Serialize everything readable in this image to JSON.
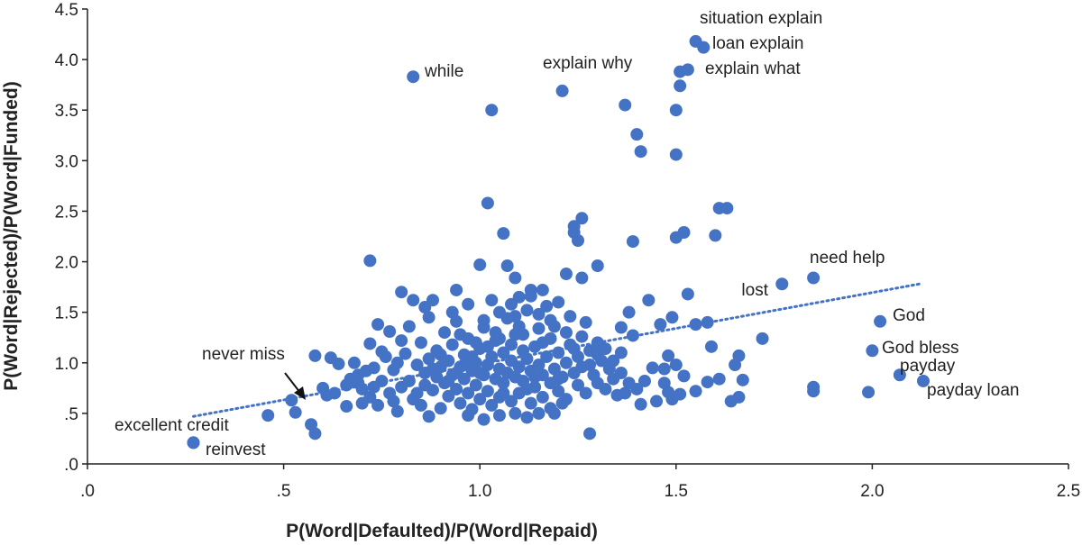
{
  "chart_data": {
    "type": "scatter",
    "title": "",
    "xlabel": "P(Word|Defaulted)/P(Word|Repaid)",
    "ylabel": "P(Word|Rejected)/P(Word|Funded)",
    "xlim": [
      0,
      2.5
    ],
    "ylim": [
      0,
      4.5
    ],
    "x_ticks": [
      0,
      0.5,
      1.0,
      1.5,
      2.0,
      2.5
    ],
    "x_tick_labels": [
      ".0",
      ".5",
      "1.0",
      "1.5",
      "2.0",
      "2.5"
    ],
    "y_ticks": [
      0,
      0.5,
      1.0,
      1.5,
      2.0,
      2.5,
      3.0,
      3.5,
      4.0,
      4.5
    ],
    "y_tick_labels": [
      ".0",
      ".5",
      "1.0",
      "1.5",
      "2.0",
      "2.5",
      "3.0",
      "3.5",
      "4.0",
      "4.5"
    ],
    "grid": false,
    "legend": "none",
    "point_color": "#4472C4",
    "trendline": {
      "style": "dotted",
      "color": "#4472C4",
      "x": [
        0.27,
        2.12
      ],
      "y": [
        0.47,
        1.78
      ]
    },
    "labeled_points": [
      {
        "label": "situation explain",
        "x": 1.55,
        "y": 4.18
      },
      {
        "label": "loan explain",
        "x": 1.57,
        "y": 4.12
      },
      {
        "label": "explain what",
        "x": 1.53,
        "y": 3.9
      },
      {
        "label": "while",
        "x": 0.83,
        "y": 3.83
      },
      {
        "label": "explain why",
        "x": 1.21,
        "y": 3.69
      },
      {
        "label": "need help",
        "x": 1.85,
        "y": 1.84
      },
      {
        "label": "lost",
        "x": 1.77,
        "y": 1.78
      },
      {
        "label": "God",
        "x": 2.02,
        "y": 1.41
      },
      {
        "label": "God bless",
        "x": 2.0,
        "y": 1.12
      },
      {
        "label": "payday",
        "x": 2.07,
        "y": 0.88
      },
      {
        "label": "payday loan",
        "x": 2.13,
        "y": 0.82
      },
      {
        "label": "never miss",
        "x": 0.52,
        "y": 0.63
      },
      {
        "label": "excellent credit",
        "x": 0.27,
        "y": 0.21
      },
      {
        "label": "reinvest",
        "x": 0.27,
        "y": 0.21
      }
    ],
    "points": [
      [
        1.51,
        3.88
      ],
      [
        1.51,
        3.74
      ],
      [
        1.5,
        3.5
      ],
      [
        1.5,
        3.06
      ],
      [
        1.03,
        3.5
      ],
      [
        1.37,
        3.55
      ],
      [
        1.4,
        3.26
      ],
      [
        1.41,
        3.09
      ],
      [
        1.02,
        2.58
      ],
      [
        1.26,
        2.43
      ],
      [
        1.39,
        2.2
      ],
      [
        1.5,
        2.24
      ],
      [
        1.52,
        2.29
      ],
      [
        1.6,
        2.26
      ],
      [
        1.61,
        2.53
      ],
      [
        1.63,
        2.53
      ],
      [
        1.06,
        2.28
      ],
      [
        1.24,
        2.35
      ],
      [
        1.24,
        2.29
      ],
      [
        1.25,
        2.21
      ],
      [
        0.72,
        2.01
      ],
      [
        1.0,
        1.97
      ],
      [
        1.07,
        1.96
      ],
      [
        1.09,
        1.84
      ],
      [
        1.22,
        1.88
      ],
      [
        1.26,
        1.84
      ],
      [
        1.3,
        1.96
      ],
      [
        1.49,
        1.45
      ],
      [
        1.53,
        1.68
      ],
      [
        1.55,
        1.38
      ],
      [
        1.58,
        1.4
      ],
      [
        1.59,
        1.16
      ],
      [
        1.65,
        0.98
      ],
      [
        1.66,
        1.07
      ],
      [
        1.67,
        0.83
      ],
      [
        1.66,
        0.66
      ],
      [
        1.64,
        0.62
      ],
      [
        1.72,
        1.24
      ],
      [
        1.85,
        0.76
      ],
      [
        1.85,
        0.72
      ],
      [
        1.99,
        0.71
      ],
      [
        1.42,
        0.82
      ],
      [
        1.47,
        0.8
      ],
      [
        1.48,
        0.71
      ],
      [
        1.49,
        0.64
      ],
      [
        1.51,
        0.69
      ],
      [
        1.45,
        0.62
      ],
      [
        1.41,
        0.59
      ],
      [
        1.37,
        0.7
      ],
      [
        1.4,
        0.74
      ],
      [
        1.44,
        0.95
      ],
      [
        1.47,
        0.94
      ],
      [
        1.48,
        1.07
      ],
      [
        1.5,
        0.98
      ],
      [
        1.52,
        0.87
      ],
      [
        1.55,
        0.72
      ],
      [
        1.58,
        0.81
      ],
      [
        1.61,
        0.84
      ],
      [
        1.36,
        1.35
      ],
      [
        1.38,
        1.5
      ],
      [
        1.43,
        1.62
      ],
      [
        1.46,
        1.38
      ],
      [
        1.39,
        1.27
      ],
      [
        1.3,
        1.2
      ],
      [
        0.46,
        0.48
      ],
      [
        0.53,
        0.51
      ],
      [
        0.57,
        0.39
      ],
      [
        0.58,
        0.3
      ],
      [
        0.61,
        0.68
      ],
      [
        0.58,
        1.07
      ],
      [
        0.62,
        1.05
      ],
      [
        0.64,
        0.99
      ],
      [
        0.67,
        0.84
      ],
      [
        0.7,
        0.6
      ],
      [
        0.74,
        1.38
      ],
      [
        0.77,
        1.31
      ],
      [
        0.8,
        1.7
      ],
      [
        0.83,
        1.62
      ],
      [
        0.86,
        1.55
      ],
      [
        0.88,
        1.62
      ],
      [
        0.72,
        1.19
      ],
      [
        0.75,
        1.11
      ],
      [
        0.66,
        0.57
      ],
      [
        0.79,
        0.52
      ],
      [
        0.87,
        0.47
      ],
      [
        1.01,
        0.44
      ],
      [
        1.28,
        0.3
      ],
      [
        1.05,
        0.48
      ],
      [
        1.12,
        0.46
      ],
      [
        1.15,
        0.5
      ],
      [
        1.18,
        0.55
      ],
      [
        1.21,
        0.6
      ],
      [
        0.94,
        1.72
      ],
      [
        1.1,
        1.65
      ],
      [
        1.16,
        1.72
      ],
      [
        1.2,
        1.6
      ],
      [
        0.6,
        0.75
      ],
      [
        0.63,
        0.7
      ],
      [
        0.66,
        0.78
      ],
      [
        0.69,
        0.88
      ],
      [
        0.71,
        0.92
      ],
      [
        0.73,
        0.95
      ],
      [
        0.75,
        0.82
      ],
      [
        0.77,
        0.7
      ],
      [
        0.78,
        0.93
      ],
      [
        0.79,
        1.0
      ],
      [
        0.8,
        0.76
      ],
      [
        0.81,
        1.09
      ],
      [
        0.82,
        0.82
      ],
      [
        0.83,
        0.64
      ],
      [
        0.84,
        0.98
      ],
      [
        0.85,
        1.2
      ],
      [
        0.85,
        0.58
      ],
      [
        0.86,
        0.9
      ],
      [
        0.87,
        1.04
      ],
      [
        0.88,
        0.73
      ],
      [
        0.89,
        0.86
      ],
      [
        0.89,
        1.12
      ],
      [
        0.9,
        0.96
      ],
      [
        0.9,
        0.55
      ],
      [
        0.91,
        0.8
      ],
      [
        0.91,
        1.3
      ],
      [
        0.92,
        1.02
      ],
      [
        0.92,
        0.67
      ],
      [
        0.93,
        0.88
      ],
      [
        0.93,
        1.18
      ],
      [
        0.94,
        0.74
      ],
      [
        0.94,
        1.41
      ],
      [
        0.95,
        0.96
      ],
      [
        0.95,
        0.6
      ],
      [
        0.96,
        0.84
      ],
      [
        0.96,
        1.08
      ],
      [
        0.97,
        0.7
      ],
      [
        0.97,
        1.24
      ],
      [
        0.98,
        0.92
      ],
      [
        0.98,
        0.54
      ],
      [
        0.99,
        1.0
      ],
      [
        0.99,
        0.78
      ],
      [
        1.0,
        1.14
      ],
      [
        1.0,
        0.64
      ],
      [
        1.01,
        0.88
      ],
      [
        1.01,
        1.35
      ],
      [
        1.02,
        0.98
      ],
      [
        1.02,
        0.72
      ],
      [
        1.03,
        1.06
      ],
      [
        1.03,
        0.58
      ],
      [
        1.04,
        0.84
      ],
      [
        1.04,
        1.22
      ],
      [
        1.05,
        0.94
      ],
      [
        1.05,
        0.66
      ],
      [
        1.06,
        1.1
      ],
      [
        1.06,
        0.8
      ],
      [
        1.07,
        1.44
      ],
      [
        1.07,
        0.9
      ],
      [
        1.08,
        1.02
      ],
      [
        1.08,
        0.62
      ],
      [
        1.09,
        0.86
      ],
      [
        1.09,
        1.28
      ],
      [
        1.1,
        0.96
      ],
      [
        1.1,
        0.7
      ],
      [
        1.11,
        1.12
      ],
      [
        1.11,
        0.82
      ],
      [
        1.12,
        1.04
      ],
      [
        1.12,
        1.52
      ],
      [
        1.13,
        0.92
      ],
      [
        1.13,
        0.6
      ],
      [
        1.14,
        1.16
      ],
      [
        1.14,
        0.76
      ],
      [
        1.15,
        0.98
      ],
      [
        1.15,
        1.34
      ],
      [
        1.16,
        0.88
      ],
      [
        1.16,
        0.66
      ],
      [
        1.17,
        1.06
      ],
      [
        1.18,
        0.8
      ],
      [
        1.18,
        1.24
      ],
      [
        1.19,
        0.94
      ],
      [
        1.2,
        0.72
      ],
      [
        1.2,
        1.1
      ],
      [
        1.21,
        0.86
      ],
      [
        1.22,
        1.0
      ],
      [
        1.22,
        0.64
      ],
      [
        1.23,
        1.18
      ],
      [
        1.24,
        0.9
      ],
      [
        1.25,
        0.78
      ],
      [
        1.25,
        1.06
      ],
      [
        1.26,
        0.96
      ],
      [
        1.27,
        0.7
      ],
      [
        1.28,
        1.12
      ],
      [
        1.29,
        0.88
      ],
      [
        1.3,
        0.8
      ],
      [
        1.31,
        1.02
      ],
      [
        1.32,
        0.74
      ],
      [
        1.33,
        0.94
      ],
      [
        1.34,
        0.84
      ],
      [
        1.35,
        0.68
      ],
      [
        1.36,
        0.9
      ],
      [
        1.38,
        0.8
      ],
      [
        0.68,
        1.0
      ],
      [
        0.7,
        0.74
      ],
      [
        0.72,
        0.66
      ],
      [
        0.74,
        0.58
      ],
      [
        0.76,
        1.06
      ],
      [
        0.78,
        0.62
      ],
      [
        0.8,
        1.22
      ],
      [
        0.82,
        1.36
      ],
      [
        0.84,
        0.7
      ],
      [
        0.86,
        0.78
      ],
      [
        0.88,
        0.94
      ],
      [
        0.9,
        1.08
      ],
      [
        0.92,
        0.82
      ],
      [
        0.94,
        0.9
      ],
      [
        0.96,
        0.98
      ],
      [
        0.98,
        1.06
      ],
      [
        1.0,
        0.9
      ],
      [
        1.02,
        1.16
      ],
      [
        1.04,
        1.3
      ],
      [
        1.06,
        0.7
      ],
      [
        1.08,
        1.18
      ],
      [
        1.1,
        1.36
      ],
      [
        1.12,
        0.74
      ],
      [
        1.14,
        0.86
      ],
      [
        1.16,
        1.2
      ],
      [
        1.18,
        1.42
      ],
      [
        1.2,
        0.84
      ],
      [
        1.22,
        1.3
      ],
      [
        1.24,
        1.14
      ],
      [
        1.26,
        1.26
      ],
      [
        1.28,
        0.98
      ],
      [
        1.3,
        1.08
      ],
      [
        1.32,
        1.14
      ],
      [
        1.34,
        1.02
      ],
      [
        1.36,
        1.1
      ],
      [
        0.87,
        1.45
      ],
      [
        0.93,
        1.5
      ],
      [
        0.97,
        1.58
      ],
      [
        1.03,
        1.62
      ],
      [
        1.08,
        1.58
      ],
      [
        1.13,
        1.66
      ],
      [
        1.17,
        1.56
      ],
      [
        1.23,
        1.46
      ],
      [
        1.27,
        1.4
      ],
      [
        0.95,
        1.28
      ],
      [
        1.01,
        1.42
      ],
      [
        1.05,
        1.5
      ],
      [
        1.09,
        1.46
      ],
      [
        1.15,
        1.48
      ],
      [
        1.19,
        1.36
      ],
      [
        0.99,
        1.2
      ],
      [
        1.05,
        1.24
      ],
      [
        1.11,
        1.28
      ],
      [
        0.97,
        0.48
      ],
      [
        1.09,
        0.5
      ],
      [
        1.19,
        0.5
      ],
      [
        1.13,
        1.72
      ],
      [
        0.69,
        0.8
      ],
      [
        0.73,
        0.76
      ]
    ]
  }
}
